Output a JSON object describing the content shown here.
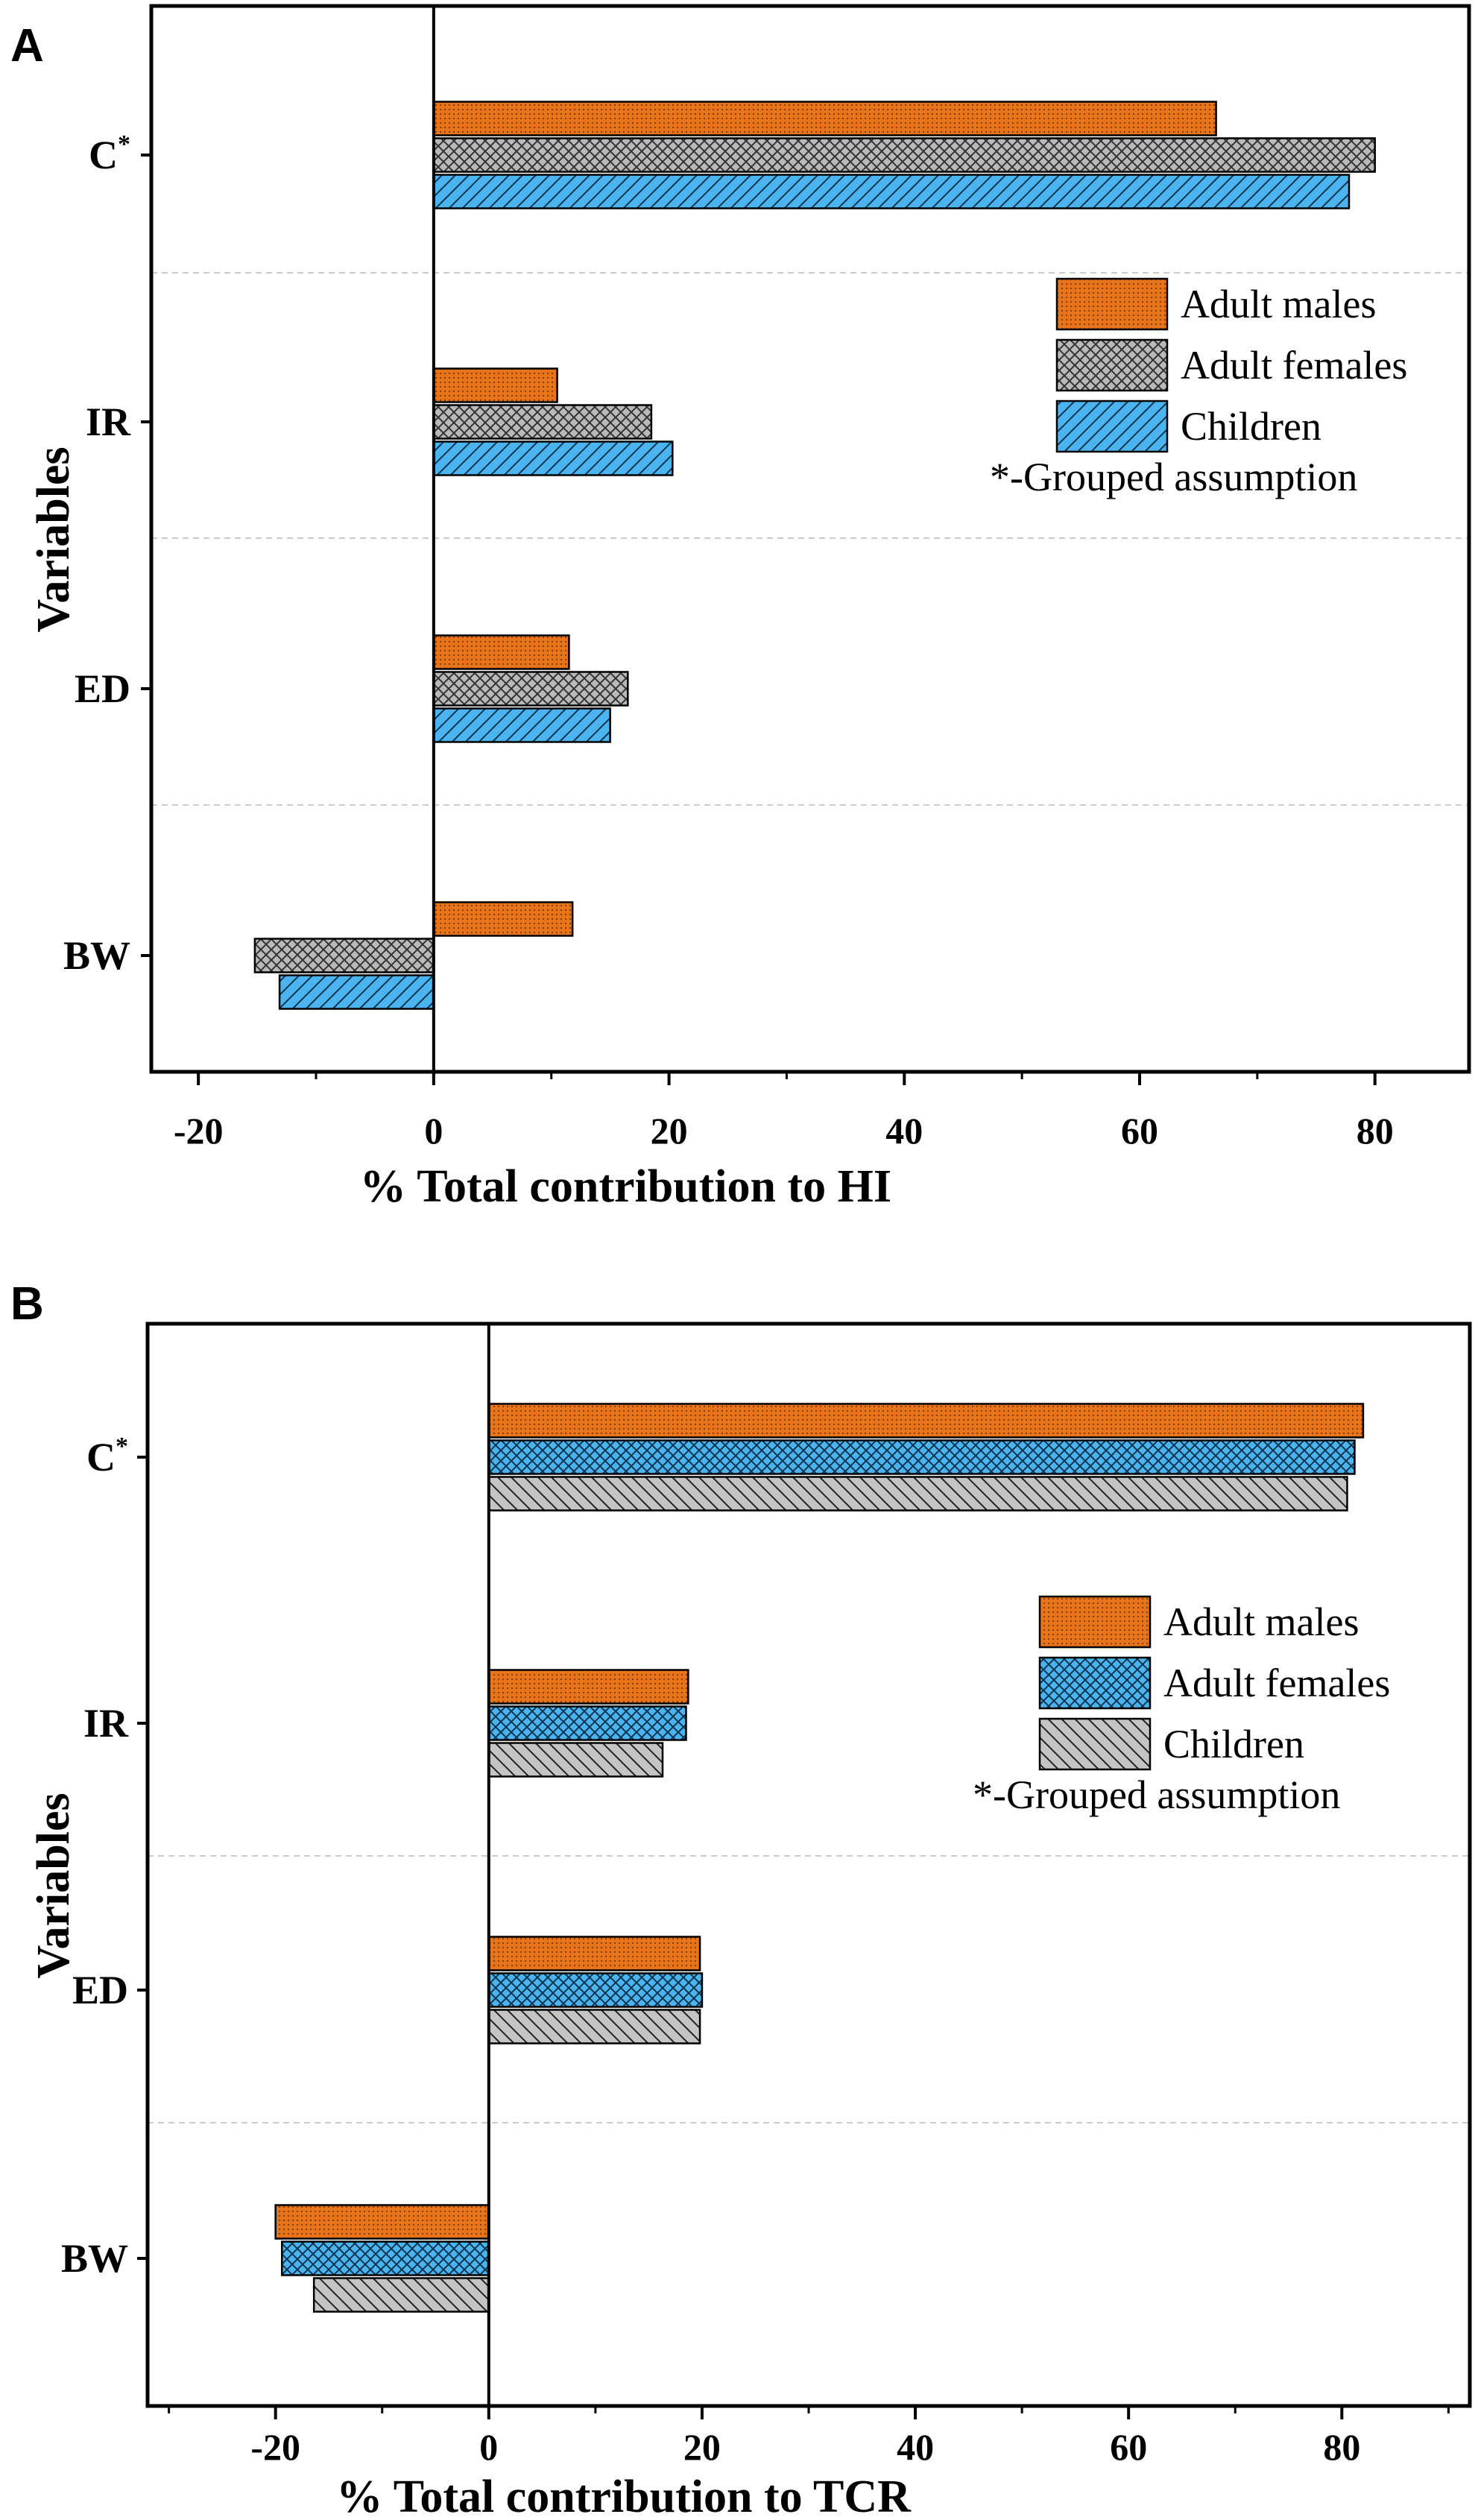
{
  "colors": {
    "orange": "#e8751a",
    "gray": "#b9b9b9",
    "blue": "#4bb3ee",
    "axis": "#000000",
    "grid": "#cccccc"
  },
  "chart_data": [
    {
      "panel": "A",
      "type": "bar",
      "orientation": "horizontal",
      "categories": [
        "C",
        "IR",
        "ED",
        "BW"
      ],
      "category_superscripts": [
        "*",
        "",
        "",
        ""
      ],
      "series": [
        {
          "name": "Adult males",
          "values": [
            66.5,
            10.5,
            11.5,
            11.8
          ],
          "color": "#e8751a",
          "pattern": "dots"
        },
        {
          "name": "Adult females",
          "values": [
            80.0,
            18.5,
            16.5,
            -15.2
          ],
          "color": "#b9b9b9",
          "pattern": "crosshatch"
        },
        {
          "name": "Children",
          "values": [
            77.8,
            20.3,
            15.0,
            -13.1
          ],
          "color": "#4bb3ee",
          "pattern": "diag-right"
        }
      ],
      "xlim": [
        -24,
        88
      ],
      "xticks": [
        -20,
        0,
        20,
        40,
        60,
        80
      ],
      "xlabel": "% Total contribution to HI",
      "ylabel": "Variables",
      "legend_note": "*-Grouped assumption",
      "grid": "horizontal dashed separators",
      "legend_position": "right"
    },
    {
      "panel": "B",
      "type": "bar",
      "orientation": "horizontal",
      "categories": [
        "C",
        "IR",
        "ED",
        "BW"
      ],
      "category_superscripts": [
        "*",
        "",
        "",
        ""
      ],
      "series": [
        {
          "name": "Adult males",
          "values": [
            82.0,
            18.7,
            19.8,
            -20.0
          ],
          "color": "#e8751a",
          "pattern": "dots"
        },
        {
          "name": "Adult females",
          "values": [
            81.2,
            18.5,
            20.0,
            -19.4
          ],
          "color": "#4bb3ee",
          "pattern": "crosshatch"
        },
        {
          "name": "Children",
          "values": [
            80.5,
            16.3,
            19.8,
            -16.4
          ],
          "color": "#b9b9b9",
          "pattern": "diag-left"
        }
      ],
      "xlim": [
        -32,
        92
      ],
      "xticks": [
        -20,
        0,
        20,
        40,
        60,
        80
      ],
      "xlabel": "% Total contribution to TCR",
      "ylabel": "Variables",
      "legend_note": "*-Grouped assumption",
      "grid": "horizontal dashed separators",
      "legend_position": "right"
    }
  ]
}
